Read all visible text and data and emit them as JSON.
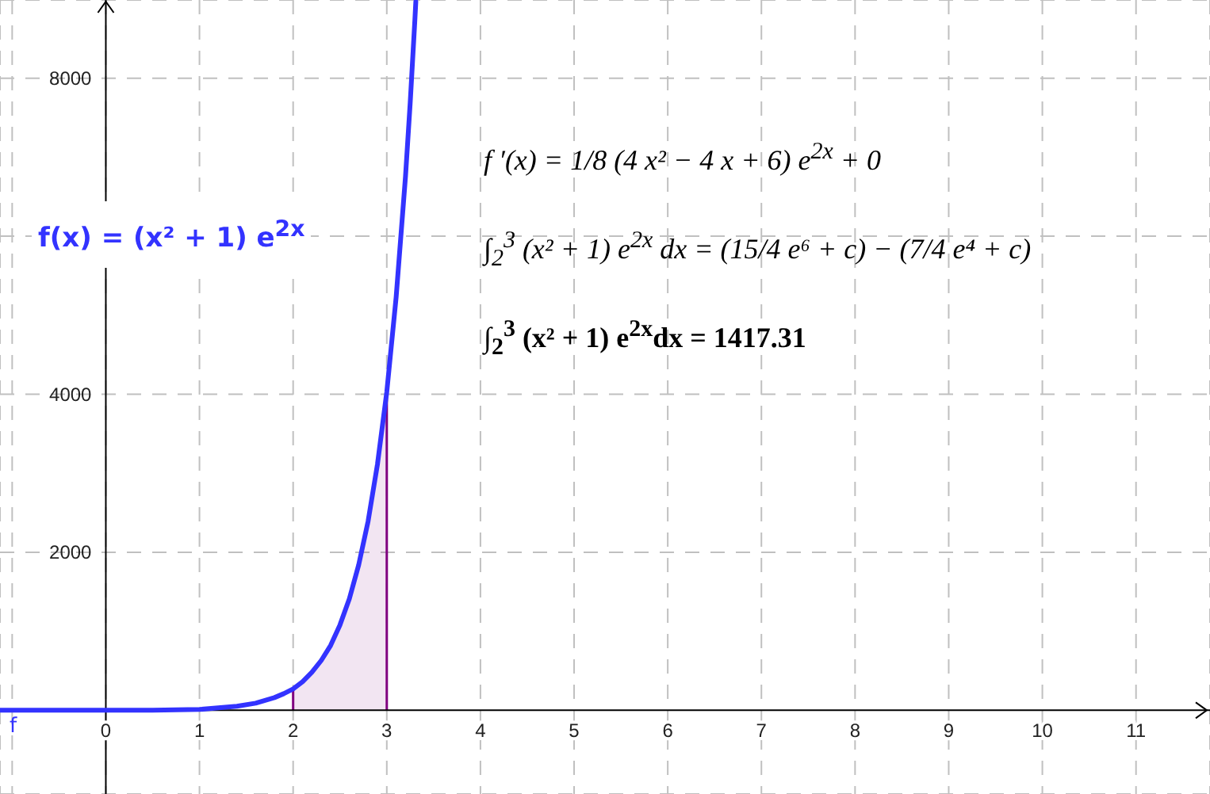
{
  "chart_data": {
    "type": "line",
    "series": [
      {
        "name": "f",
        "color": "#3333ff",
        "x": [
          -1.13,
          -0.5,
          0,
          0.5,
          1,
          1.2,
          1.4,
          1.6,
          1.8,
          1.9,
          2,
          2.1,
          2.2,
          2.3,
          2.4,
          2.5,
          2.6,
          2.7,
          2.8,
          2.9,
          3,
          3.1,
          3.2,
          3.25,
          3.3,
          3.31
        ],
        "values": [
          0,
          0,
          0,
          0,
          10,
          30,
          50,
          90,
          160,
          210,
          270,
          360,
          480,
          630,
          820,
          1080,
          1410,
          1840,
          2390,
          3110,
          4030,
          5230,
          6760,
          7690,
          8740,
          8970
        ]
      },
      {
        "type": "area",
        "color": "#800080",
        "x": [
          2,
          2.1,
          2.2,
          2.3,
          2.4,
          2.5,
          2.6,
          2.7,
          2.8,
          2.9,
          3
        ],
        "values": [
          270,
          360,
          480,
          630,
          820,
          1080,
          1410,
          1840,
          2390,
          3110,
          4030
        ]
      }
    ],
    "xlim": [
      -1.13,
      11.79
    ],
    "ylim": [
      -1060,
      8990
    ],
    "xticks": [
      {
        "value": -1,
        "label": null
      },
      0,
      1,
      2,
      3,
      4,
      5,
      6,
      7,
      8,
      9,
      10,
      11
    ],
    "yticks": [
      2000,
      4000,
      {
        "value": 6000,
        "label": null
      },
      8000
    ],
    "grid": true,
    "annotations": [
      "f(x) = (x² + 1) e$^{2x}$",
      "f ′(x) = 1/8 (4 x² − 4 x + 6) e$^{2x}$ + 0",
      "∫$_{2}$$^{3}$ (x² + 1) e$^{2x}$ dx = (15/4 e⁶ + c) − (7/4 e⁴ + c)",
      "∫$_{2}$$^{3}$ (x² + 1) e$^{2x}$dx = 1417.31"
    ]
  }
}
